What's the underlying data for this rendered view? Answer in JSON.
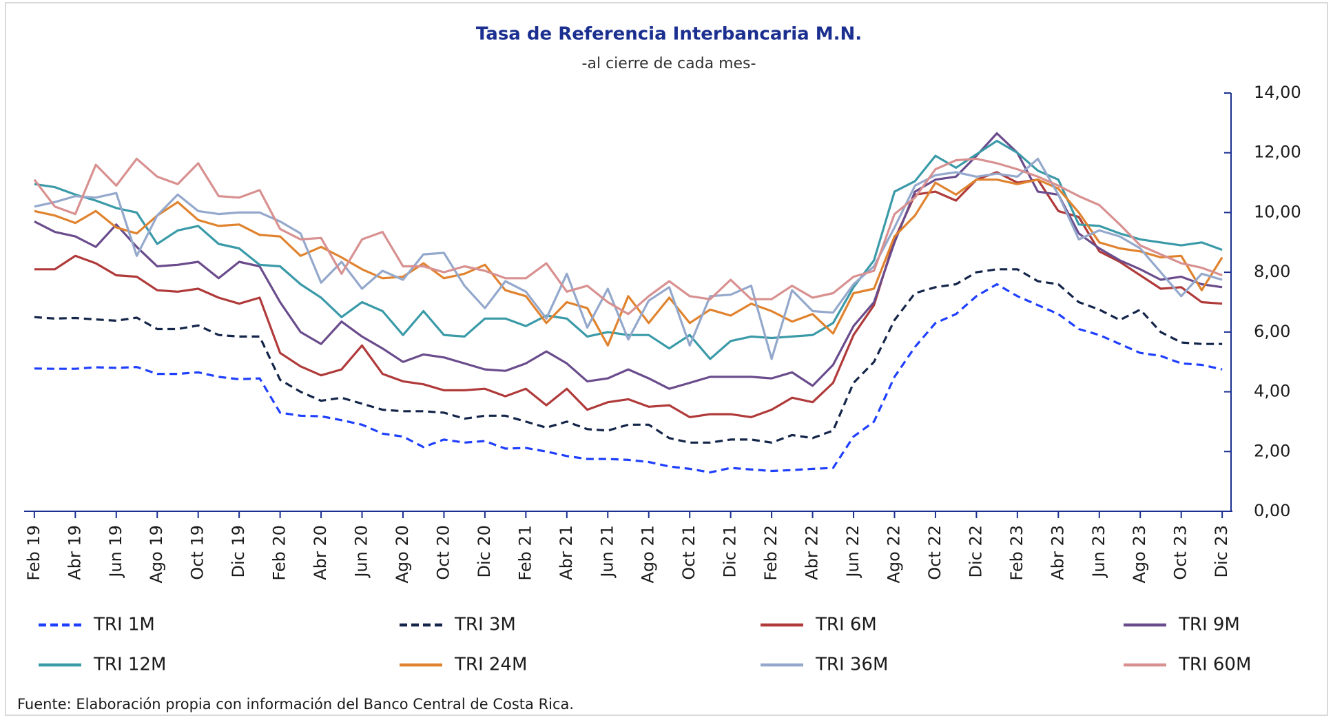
{
  "chart_data": {
    "type": "line",
    "title": "Tasa de Referencia Interbancaria M.N.",
    "subtitle": "-al cierre de cada mes-",
    "source": "Fuente: Elaboración propia con información del Banco Central de Costa Rica.",
    "categories": [
      "Feb 19",
      null,
      "Abr 19",
      null,
      "Jun 19",
      null,
      "Ago 19",
      null,
      "Oct 19",
      null,
      "Dic 19",
      null,
      "Feb 20",
      null,
      "Abr 20",
      null,
      "Jun 20",
      null,
      "Ago 20",
      null,
      "Oct 20",
      null,
      "Dic 20",
      null,
      "Feb 21",
      null,
      "Abr 21",
      null,
      "Jun 21",
      null,
      "Ago 21",
      null,
      "Oct 21",
      null,
      "Dic 21",
      null,
      "Feb 22",
      null,
      "Abr 22",
      null,
      "Jun 22",
      null,
      "Ago 22",
      null,
      "Oct 22",
      null,
      "Dic 22",
      null,
      "Feb 23",
      null,
      "Abr 23",
      null,
      "Jun 23",
      null,
      "Ago 23",
      null,
      "Oct 23",
      null,
      "Dic 23"
    ],
    "ylim": [
      0,
      14
    ],
    "yticks": [
      {
        "value": 0,
        "label": "0,00"
      },
      {
        "value": 2,
        "label": "2,00"
      },
      {
        "value": 4,
        "label": "4,00"
      },
      {
        "value": 6,
        "label": "6,00"
      },
      {
        "value": 8,
        "label": "8,00"
      },
      {
        "value": 10,
        "label": "10,00"
      },
      {
        "value": 12,
        "label": "12,00"
      },
      {
        "value": 14,
        "label": "14,00"
      }
    ],
    "y_axis_side": "right",
    "grid": false,
    "series": [
      {
        "name": "TRI 1M",
        "color": "#1f3fff",
        "dash": true,
        "values": [
          4.78,
          4.77,
          4.77,
          4.82,
          4.8,
          4.83,
          4.6,
          4.6,
          4.65,
          4.5,
          4.42,
          4.45,
          3.3,
          3.2,
          3.18,
          3.05,
          2.9,
          2.6,
          2.5,
          2.15,
          2.4,
          2.3,
          2.35,
          2.1,
          2.12,
          2.0,
          1.85,
          1.75,
          1.75,
          1.72,
          1.65,
          1.5,
          1.42,
          1.3,
          1.45,
          1.4,
          1.35,
          1.38,
          1.42,
          1.45,
          2.5,
          3.0,
          4.5,
          5.5,
          6.3,
          6.6,
          7.2,
          7.6,
          7.2,
          6.9,
          6.6,
          6.1,
          5.9,
          5.6,
          5.3,
          5.2,
          4.95,
          4.9,
          4.75
        ]
      },
      {
        "name": "TRI 3M",
        "color": "#14254a",
        "dash": true,
        "values": [
          6.5,
          6.45,
          6.47,
          6.42,
          6.38,
          6.48,
          6.1,
          6.1,
          6.22,
          5.9,
          5.85,
          5.85,
          4.4,
          4.0,
          3.7,
          3.8,
          3.6,
          3.4,
          3.35,
          3.35,
          3.3,
          3.1,
          3.2,
          3.2,
          3.0,
          2.8,
          3.0,
          2.75,
          2.7,
          2.9,
          2.9,
          2.45,
          2.3,
          2.3,
          2.4,
          2.4,
          2.3,
          2.55,
          2.45,
          2.7,
          4.3,
          5.0,
          6.4,
          7.3,
          7.5,
          7.6,
          8.0,
          8.1,
          8.1,
          7.7,
          7.6,
          7.0,
          6.75,
          6.4,
          6.75,
          6.0,
          5.65,
          5.6,
          5.6
        ]
      },
      {
        "name": "TRI 6M",
        "color": "#b03a3a",
        "dash": false,
        "values": [
          8.1,
          8.1,
          8.55,
          8.3,
          7.9,
          7.85,
          7.4,
          7.35,
          7.45,
          7.15,
          6.95,
          7.15,
          5.3,
          4.85,
          4.55,
          4.75,
          5.55,
          4.6,
          4.35,
          4.25,
          4.05,
          4.05,
          4.1,
          3.85,
          4.1,
          3.55,
          4.1,
          3.4,
          3.65,
          3.75,
          3.5,
          3.55,
          3.15,
          3.25,
          3.25,
          3.15,
          3.4,
          3.8,
          3.65,
          4.3,
          5.9,
          6.9,
          9.1,
          10.6,
          10.7,
          10.4,
          11.1,
          11.35,
          11.0,
          11.1,
          10.05,
          9.85,
          8.7,
          8.35,
          7.9,
          7.45,
          7.5,
          7.0,
          6.95
        ]
      },
      {
        "name": "TRI 9M",
        "color": "#6a4c8c",
        "dash": false,
        "values": [
          9.7,
          9.35,
          9.2,
          8.85,
          9.6,
          8.85,
          8.2,
          8.25,
          8.35,
          7.8,
          8.35,
          8.2,
          7.0,
          6.0,
          5.6,
          6.35,
          5.85,
          5.45,
          5.0,
          5.25,
          5.15,
          4.95,
          4.75,
          4.7,
          4.95,
          5.35,
          4.95,
          4.35,
          4.45,
          4.75,
          4.45,
          4.1,
          4.3,
          4.5,
          4.5,
          4.5,
          4.45,
          4.65,
          4.2,
          4.9,
          6.2,
          7.0,
          9.0,
          10.7,
          11.1,
          11.2,
          11.9,
          12.65,
          12.0,
          10.7,
          10.6,
          9.3,
          8.8,
          8.4,
          8.1,
          7.75,
          7.85,
          7.6,
          7.5
        ]
      },
      {
        "name": "TRI 12M",
        "color": "#3a9aa8",
        "dash": false,
        "values": [
          10.95,
          10.85,
          10.6,
          10.4,
          10.15,
          10.0,
          8.95,
          9.4,
          9.55,
          8.95,
          8.8,
          8.25,
          8.2,
          7.6,
          7.15,
          6.5,
          7.0,
          6.7,
          5.9,
          6.7,
          5.9,
          5.85,
          6.45,
          6.45,
          6.2,
          6.55,
          6.45,
          5.85,
          6.0,
          5.9,
          5.9,
          5.45,
          5.9,
          5.1,
          5.7,
          5.85,
          5.8,
          5.85,
          5.9,
          6.3,
          7.5,
          8.4,
          10.7,
          11.05,
          11.9,
          11.5,
          11.95,
          12.4,
          12.0,
          11.4,
          11.1,
          9.6,
          9.55,
          9.3,
          9.1,
          9.0,
          8.9,
          9.0,
          8.75
        ]
      },
      {
        "name": "TRI 24M",
        "color": "#e0832f",
        "dash": false,
        "values": [
          10.05,
          9.9,
          9.65,
          10.05,
          9.5,
          9.3,
          9.9,
          10.35,
          9.75,
          9.55,
          9.6,
          9.25,
          9.2,
          8.55,
          8.85,
          8.5,
          8.1,
          7.8,
          7.85,
          8.3,
          7.8,
          7.95,
          8.25,
          7.4,
          7.2,
          6.3,
          7.0,
          6.8,
          5.55,
          7.2,
          6.3,
          7.15,
          6.3,
          6.75,
          6.55,
          6.95,
          6.7,
          6.35,
          6.6,
          5.95,
          7.3,
          7.45,
          9.2,
          9.9,
          11.0,
          10.6,
          11.1,
          11.1,
          10.95,
          11.1,
          10.8,
          10.0,
          9.0,
          8.8,
          8.7,
          8.5,
          8.55,
          7.4,
          8.5
        ]
      },
      {
        "name": "TRI 36M",
        "color": "#94a8cc",
        "dash": false,
        "values": [
          10.2,
          10.35,
          10.55,
          10.5,
          10.65,
          8.55,
          9.9,
          10.6,
          10.05,
          9.95,
          10.0,
          10.0,
          9.7,
          9.3,
          7.65,
          8.35,
          7.45,
          8.05,
          7.75,
          8.6,
          8.65,
          7.55,
          6.8,
          7.7,
          7.35,
          6.45,
          7.95,
          6.15,
          7.45,
          5.75,
          7.05,
          7.5,
          5.55,
          7.2,
          7.25,
          7.55,
          5.1,
          7.4,
          6.7,
          6.65,
          7.6,
          8.2,
          9.5,
          10.9,
          11.25,
          11.35,
          11.2,
          11.3,
          11.2,
          11.8,
          10.6,
          9.1,
          9.4,
          9.2,
          8.8,
          8.0,
          7.2,
          7.95,
          7.75
        ]
      },
      {
        "name": "TRI 60M",
        "color": "#d89090",
        "dash": false,
        "values": [
          11.1,
          10.2,
          9.95,
          11.6,
          10.9,
          11.8,
          11.2,
          10.95,
          11.65,
          10.55,
          10.5,
          10.75,
          9.45,
          9.1,
          9.15,
          7.95,
          9.1,
          9.35,
          8.2,
          8.2,
          8.0,
          8.2,
          8.05,
          7.8,
          7.8,
          8.3,
          7.35,
          7.55,
          7.0,
          6.6,
          7.2,
          7.7,
          7.2,
          7.1,
          7.75,
          7.1,
          7.1,
          7.55,
          7.15,
          7.3,
          7.85,
          8.05,
          9.95,
          10.5,
          11.45,
          11.75,
          11.8,
          11.65,
          11.45,
          11.2,
          10.9,
          10.55,
          10.25,
          9.6,
          8.9,
          8.6,
          8.3,
          8.15,
          7.9
        ]
      }
    ]
  }
}
